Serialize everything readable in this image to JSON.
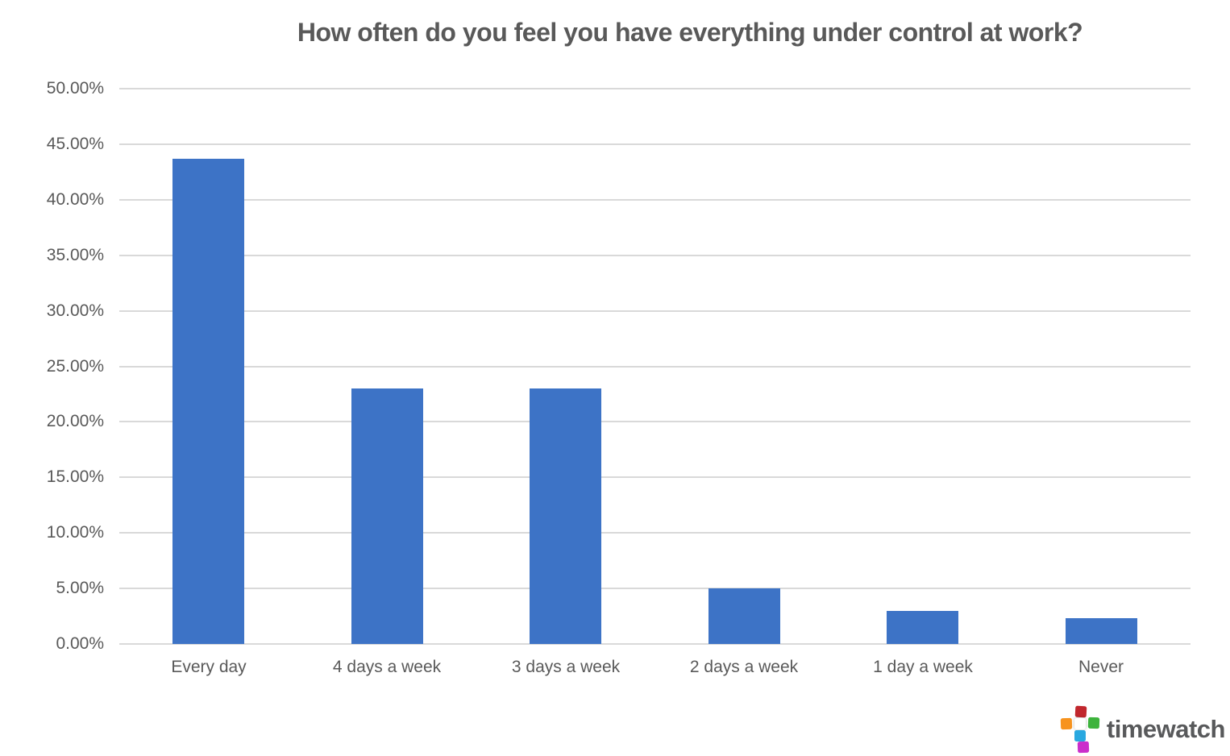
{
  "chart_data": {
    "type": "bar",
    "title": "How often do you feel you have everything under control at work?",
    "categories": [
      "Every day",
      "4 days a week",
      "3 days a week",
      "2 days a week",
      "1 day a week",
      "Never"
    ],
    "values": [
      43.7,
      23.0,
      23.0,
      5.0,
      3.0,
      2.3
    ],
    "xlabel": "",
    "ylabel": "",
    "ylim": [
      0,
      50
    ],
    "ytick_step": 5,
    "ytick_labels": [
      "0.00%",
      "5.00%",
      "10.00%",
      "15.00%",
      "20.00%",
      "25.00%",
      "30.00%",
      "35.00%",
      "40.00%",
      "45.00%",
      "50.00%"
    ],
    "grid": true,
    "legend": false,
    "bar_color": "#3d73c6",
    "gridline_color": "#d9d9d9",
    "label_color": "#595959",
    "title_color": "#595959",
    "background_color": "#ffffff"
  },
  "logo": {
    "text": "timewatch",
    "text_color": "#58595b",
    "colors": {
      "red": "#c1272d",
      "orange": "#f7931e",
      "white": "#ffffff",
      "green": "#3db33c",
      "blue": "#29a8e0",
      "magenta": "#cb2ecb"
    }
  }
}
